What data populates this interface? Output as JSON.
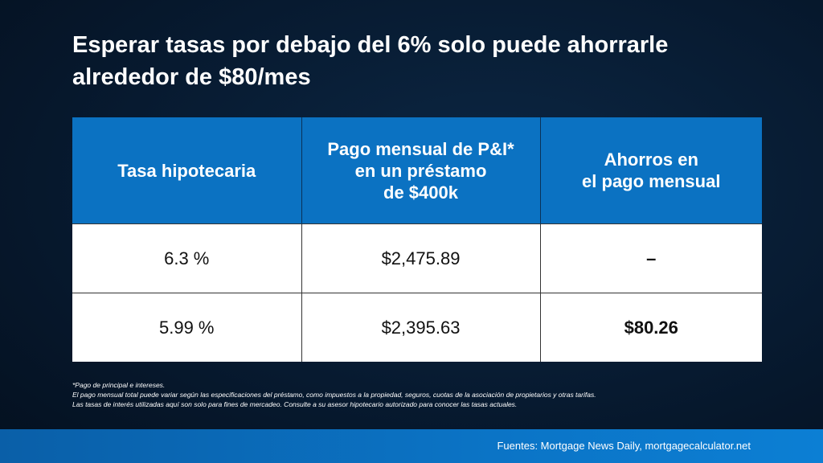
{
  "title": {
    "line1": "Esperar tasas por debajo del 6% solo puede ahorrarle",
    "line2": "alrededor de $80/mes"
  },
  "table": {
    "headers": [
      {
        "lines": [
          "Tasa hipotecaria"
        ]
      },
      {
        "lines": [
          "Pago mensual de P&I*",
          "en un préstamo",
          "de $400k"
        ]
      },
      {
        "lines": [
          "Ahorros en",
          "el pago mensual"
        ]
      }
    ],
    "rows": [
      {
        "rate": "6.3 %",
        "payment": "$2,475.89",
        "savings": "–"
      },
      {
        "rate": "5.99 %",
        "payment": "$2,395.63",
        "savings": "$80.26"
      }
    ]
  },
  "notes": [
    "*Pago de principal e intereses.",
    "El pago mensual total puede variar según las especificaciones del préstamo, como impuestos a la propiedad, seguros, cuotas de la asociación de propietarios y otras tarifas.",
    "Las tasas de interés utilizadas aquí son solo para fines de mercadeo. Consulte a su asesor hipotecario autorizado para conocer las tasas actuales."
  ],
  "footer": {
    "sources": "Fuentes: Mortgage News Daily, mortgagecalculator.net"
  }
}
